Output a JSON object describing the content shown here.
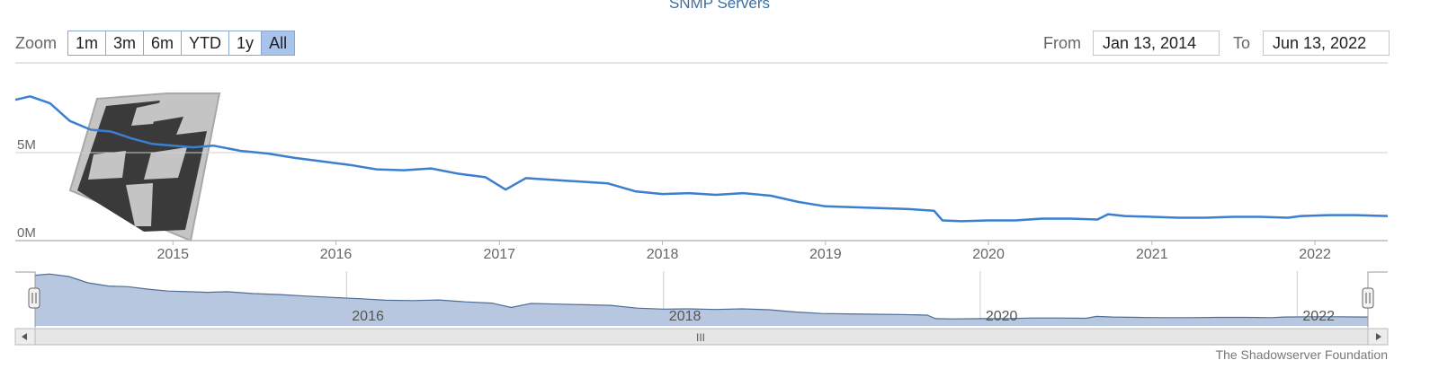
{
  "title": "SNMP Servers",
  "zoom": {
    "label": "Zoom",
    "buttons": [
      "1m",
      "3m",
      "6m",
      "YTD",
      "1y",
      "All"
    ],
    "active": "All"
  },
  "range": {
    "from_label": "From",
    "from_value": "Jan 13, 2014",
    "to_label": "To",
    "to_value": "Jun 13, 2022"
  },
  "footer": "The Shadowserver Foundation",
  "navigator": {
    "scroll_grip": "III",
    "year_labels": [
      "2016",
      "2018",
      "2020",
      "2022"
    ]
  },
  "colors": {
    "line": "#3a7fd0",
    "navigator_fill": "#b7c7df",
    "navigator_line": "#4f6d95",
    "active_button": "#a9c3ea"
  },
  "chart_data": {
    "type": "line",
    "title": "SNMP Servers",
    "x_range": [
      "2014-01-13",
      "2022-06-13"
    ],
    "ylim": [
      0,
      10000000
    ],
    "y_ticks": [
      {
        "value": 0,
        "label": "0M"
      },
      {
        "value": 5000000,
        "label": "5M"
      }
    ],
    "x_tick_labels": [
      "2015",
      "2016",
      "2017",
      "2018",
      "2019",
      "2020",
      "2021",
      "2022"
    ],
    "grid": true,
    "series": [
      {
        "x": [
          "2014-01-13",
          "2014-02-15",
          "2014-04-01",
          "2014-05-15",
          "2014-07-01",
          "2014-08-15",
          "2014-10-01",
          "2014-11-15",
          "2015-01-01",
          "2015-02-15",
          "2015-04-01",
          "2015-06-01",
          "2015-08-01",
          "2015-10-01",
          "2015-12-01",
          "2016-02-01",
          "2016-04-01",
          "2016-06-01",
          "2016-08-01",
          "2016-10-01",
          "2016-12-01",
          "2017-01-15",
          "2017-03-01",
          "2017-05-01",
          "2017-07-01",
          "2017-09-01",
          "2017-11-01",
          "2018-01-01",
          "2018-03-01",
          "2018-05-01",
          "2018-07-01",
          "2018-09-01",
          "2018-11-01",
          "2019-01-01",
          "2019-03-01",
          "2019-05-01",
          "2019-07-01",
          "2019-09-01",
          "2019-09-20",
          "2019-11-01",
          "2020-01-01",
          "2020-03-01",
          "2020-05-01",
          "2020-07-01",
          "2020-09-01",
          "2020-09-25",
          "2020-11-01",
          "2021-01-01",
          "2021-03-01",
          "2021-05-01",
          "2021-07-01",
          "2021-09-01",
          "2021-11-01",
          "2021-12-01",
          "2022-02-01",
          "2022-04-01",
          "2022-06-13"
        ],
        "y": [
          8000000,
          8200000,
          7800000,
          6800000,
          6300000,
          6200000,
          5800000,
          5500000,
          5400000,
          5300000,
          5400000,
          5100000,
          4950000,
          4700000,
          4500000,
          4300000,
          4050000,
          4000000,
          4100000,
          3800000,
          3600000,
          2900000,
          3550000,
          3450000,
          3350000,
          3250000,
          2800000,
          2650000,
          2700000,
          2600000,
          2700000,
          2550000,
          2200000,
          1950000,
          1900000,
          1850000,
          1800000,
          1700000,
          1150000,
          1100000,
          1150000,
          1150000,
          1250000,
          1250000,
          1200000,
          1500000,
          1400000,
          1350000,
          1300000,
          1300000,
          1350000,
          1350000,
          1300000,
          1400000,
          1450000,
          1450000,
          1400000
        ]
      }
    ]
  }
}
